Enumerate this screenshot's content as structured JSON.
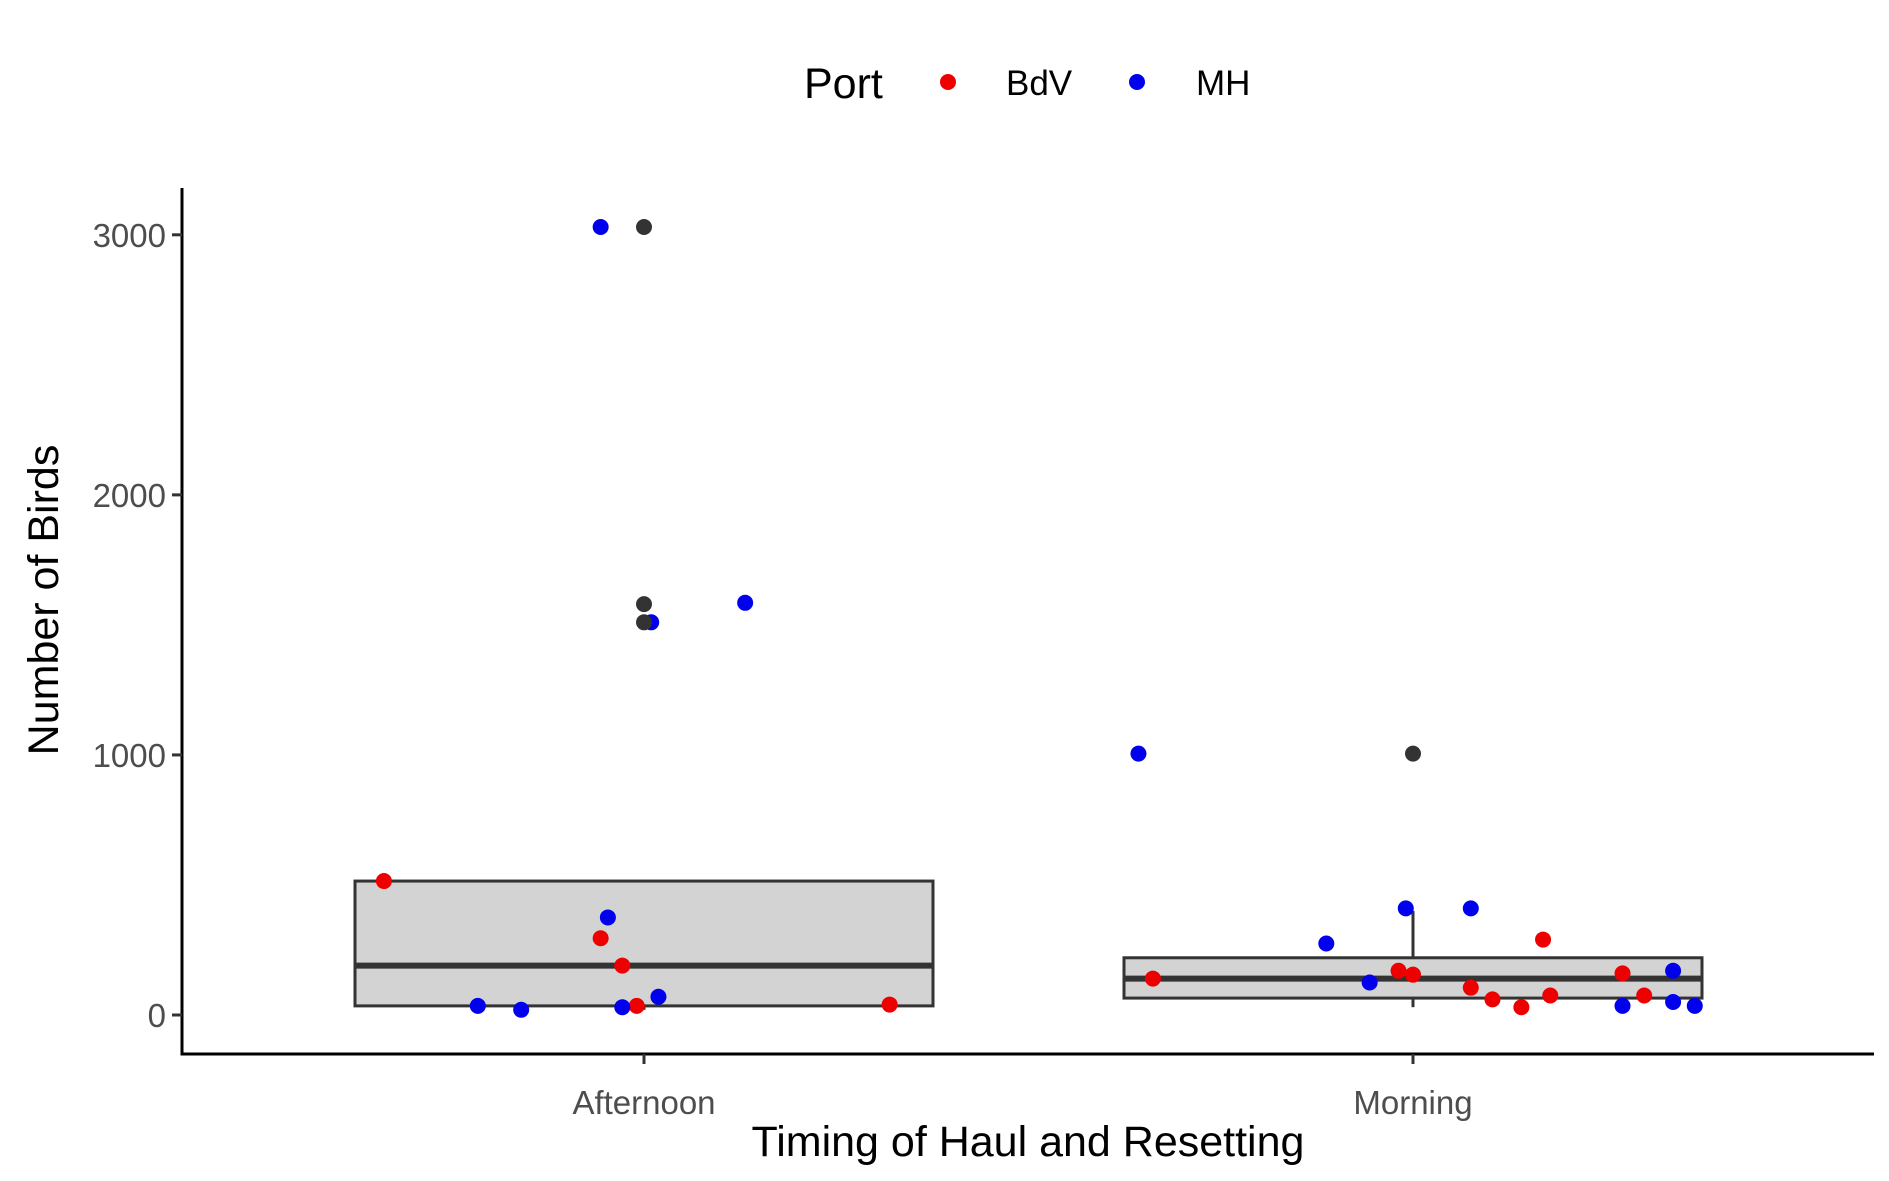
{
  "chart_data": {
    "type": "boxplot_with_jitter",
    "title": "",
    "xlabel": "Timing of Haul and Resetting",
    "ylabel": "Number of Birds",
    "categories": [
      "Afternoon",
      "Morning"
    ],
    "ylim": [
      -150,
      3180
    ],
    "yticks": [
      0,
      1000,
      2000,
      3000
    ],
    "grid": false,
    "legend": {
      "title": "Port",
      "position": "top",
      "entries": [
        {
          "label": "BdV",
          "color": "#ee0000"
        },
        {
          "label": "MH",
          "color": "#0000ee"
        }
      ]
    },
    "colors": {
      "box_fill": "#d3d3d3",
      "box_line": "#333333",
      "outlier": "#333333",
      "axis": "#000000"
    },
    "boxes": [
      {
        "category": "Afternoon",
        "q1": 35,
        "median": 190,
        "q3": 515,
        "whisker_low": 20,
        "whisker_high": 515,
        "outliers": [
          1510,
          1580,
          3030
        ]
      },
      {
        "category": "Morning",
        "q1": 65,
        "median": 140,
        "q3": 220,
        "whisker_low": 30,
        "whisker_high": 400,
        "outliers": [
          1005
        ]
      }
    ],
    "series": [
      {
        "name": "BdV",
        "color": "#ee0000",
        "points": [
          {
            "category": "Afternoon",
            "jitter": -0.36,
            "y": 515
          },
          {
            "category": "Afternoon",
            "jitter": -0.06,
            "y": 295
          },
          {
            "category": "Afternoon",
            "jitter": -0.03,
            "y": 190
          },
          {
            "category": "Afternoon",
            "jitter": -0.01,
            "y": 35
          },
          {
            "category": "Afternoon",
            "jitter": 0.34,
            "y": 40
          },
          {
            "category": "Morning",
            "jitter": -0.36,
            "y": 140
          },
          {
            "category": "Morning",
            "jitter": -0.02,
            "y": 170
          },
          {
            "category": "Morning",
            "jitter": 0.0,
            "y": 155
          },
          {
            "category": "Morning",
            "jitter": 0.08,
            "y": 105
          },
          {
            "category": "Morning",
            "jitter": 0.11,
            "y": 60
          },
          {
            "category": "Morning",
            "jitter": 0.15,
            "y": 30
          },
          {
            "category": "Morning",
            "jitter": 0.18,
            "y": 290
          },
          {
            "category": "Morning",
            "jitter": 0.19,
            "y": 75
          },
          {
            "category": "Morning",
            "jitter": 0.29,
            "y": 160
          },
          {
            "category": "Morning",
            "jitter": 0.32,
            "y": 75
          }
        ]
      },
      {
        "name": "MH",
        "color": "#0000ee",
        "points": [
          {
            "category": "Afternoon",
            "jitter": -0.06,
            "y": 3030
          },
          {
            "category": "Afternoon",
            "jitter": 0.01,
            "y": 1510
          },
          {
            "category": "Afternoon",
            "jitter": 0.14,
            "y": 1585
          },
          {
            "category": "Afternoon",
            "jitter": -0.05,
            "y": 375
          },
          {
            "category": "Afternoon",
            "jitter": -0.23,
            "y": 35
          },
          {
            "category": "Afternoon",
            "jitter": -0.17,
            "y": 20
          },
          {
            "category": "Afternoon",
            "jitter": -0.03,
            "y": 30
          },
          {
            "category": "Afternoon",
            "jitter": 0.02,
            "y": 70
          },
          {
            "category": "Morning",
            "jitter": -0.38,
            "y": 1005
          },
          {
            "category": "Morning",
            "jitter": -0.12,
            "y": 275
          },
          {
            "category": "Morning",
            "jitter": -0.06,
            "y": 125
          },
          {
            "category": "Morning",
            "jitter": -0.01,
            "y": 410
          },
          {
            "category": "Morning",
            "jitter": 0.08,
            "y": 410
          },
          {
            "category": "Morning",
            "jitter": 0.29,
            "y": 35
          },
          {
            "category": "Morning",
            "jitter": 0.36,
            "y": 170
          },
          {
            "category": "Morning",
            "jitter": 0.36,
            "y": 50
          },
          {
            "category": "Morning",
            "jitter": 0.39,
            "y": 35
          }
        ]
      }
    ]
  }
}
